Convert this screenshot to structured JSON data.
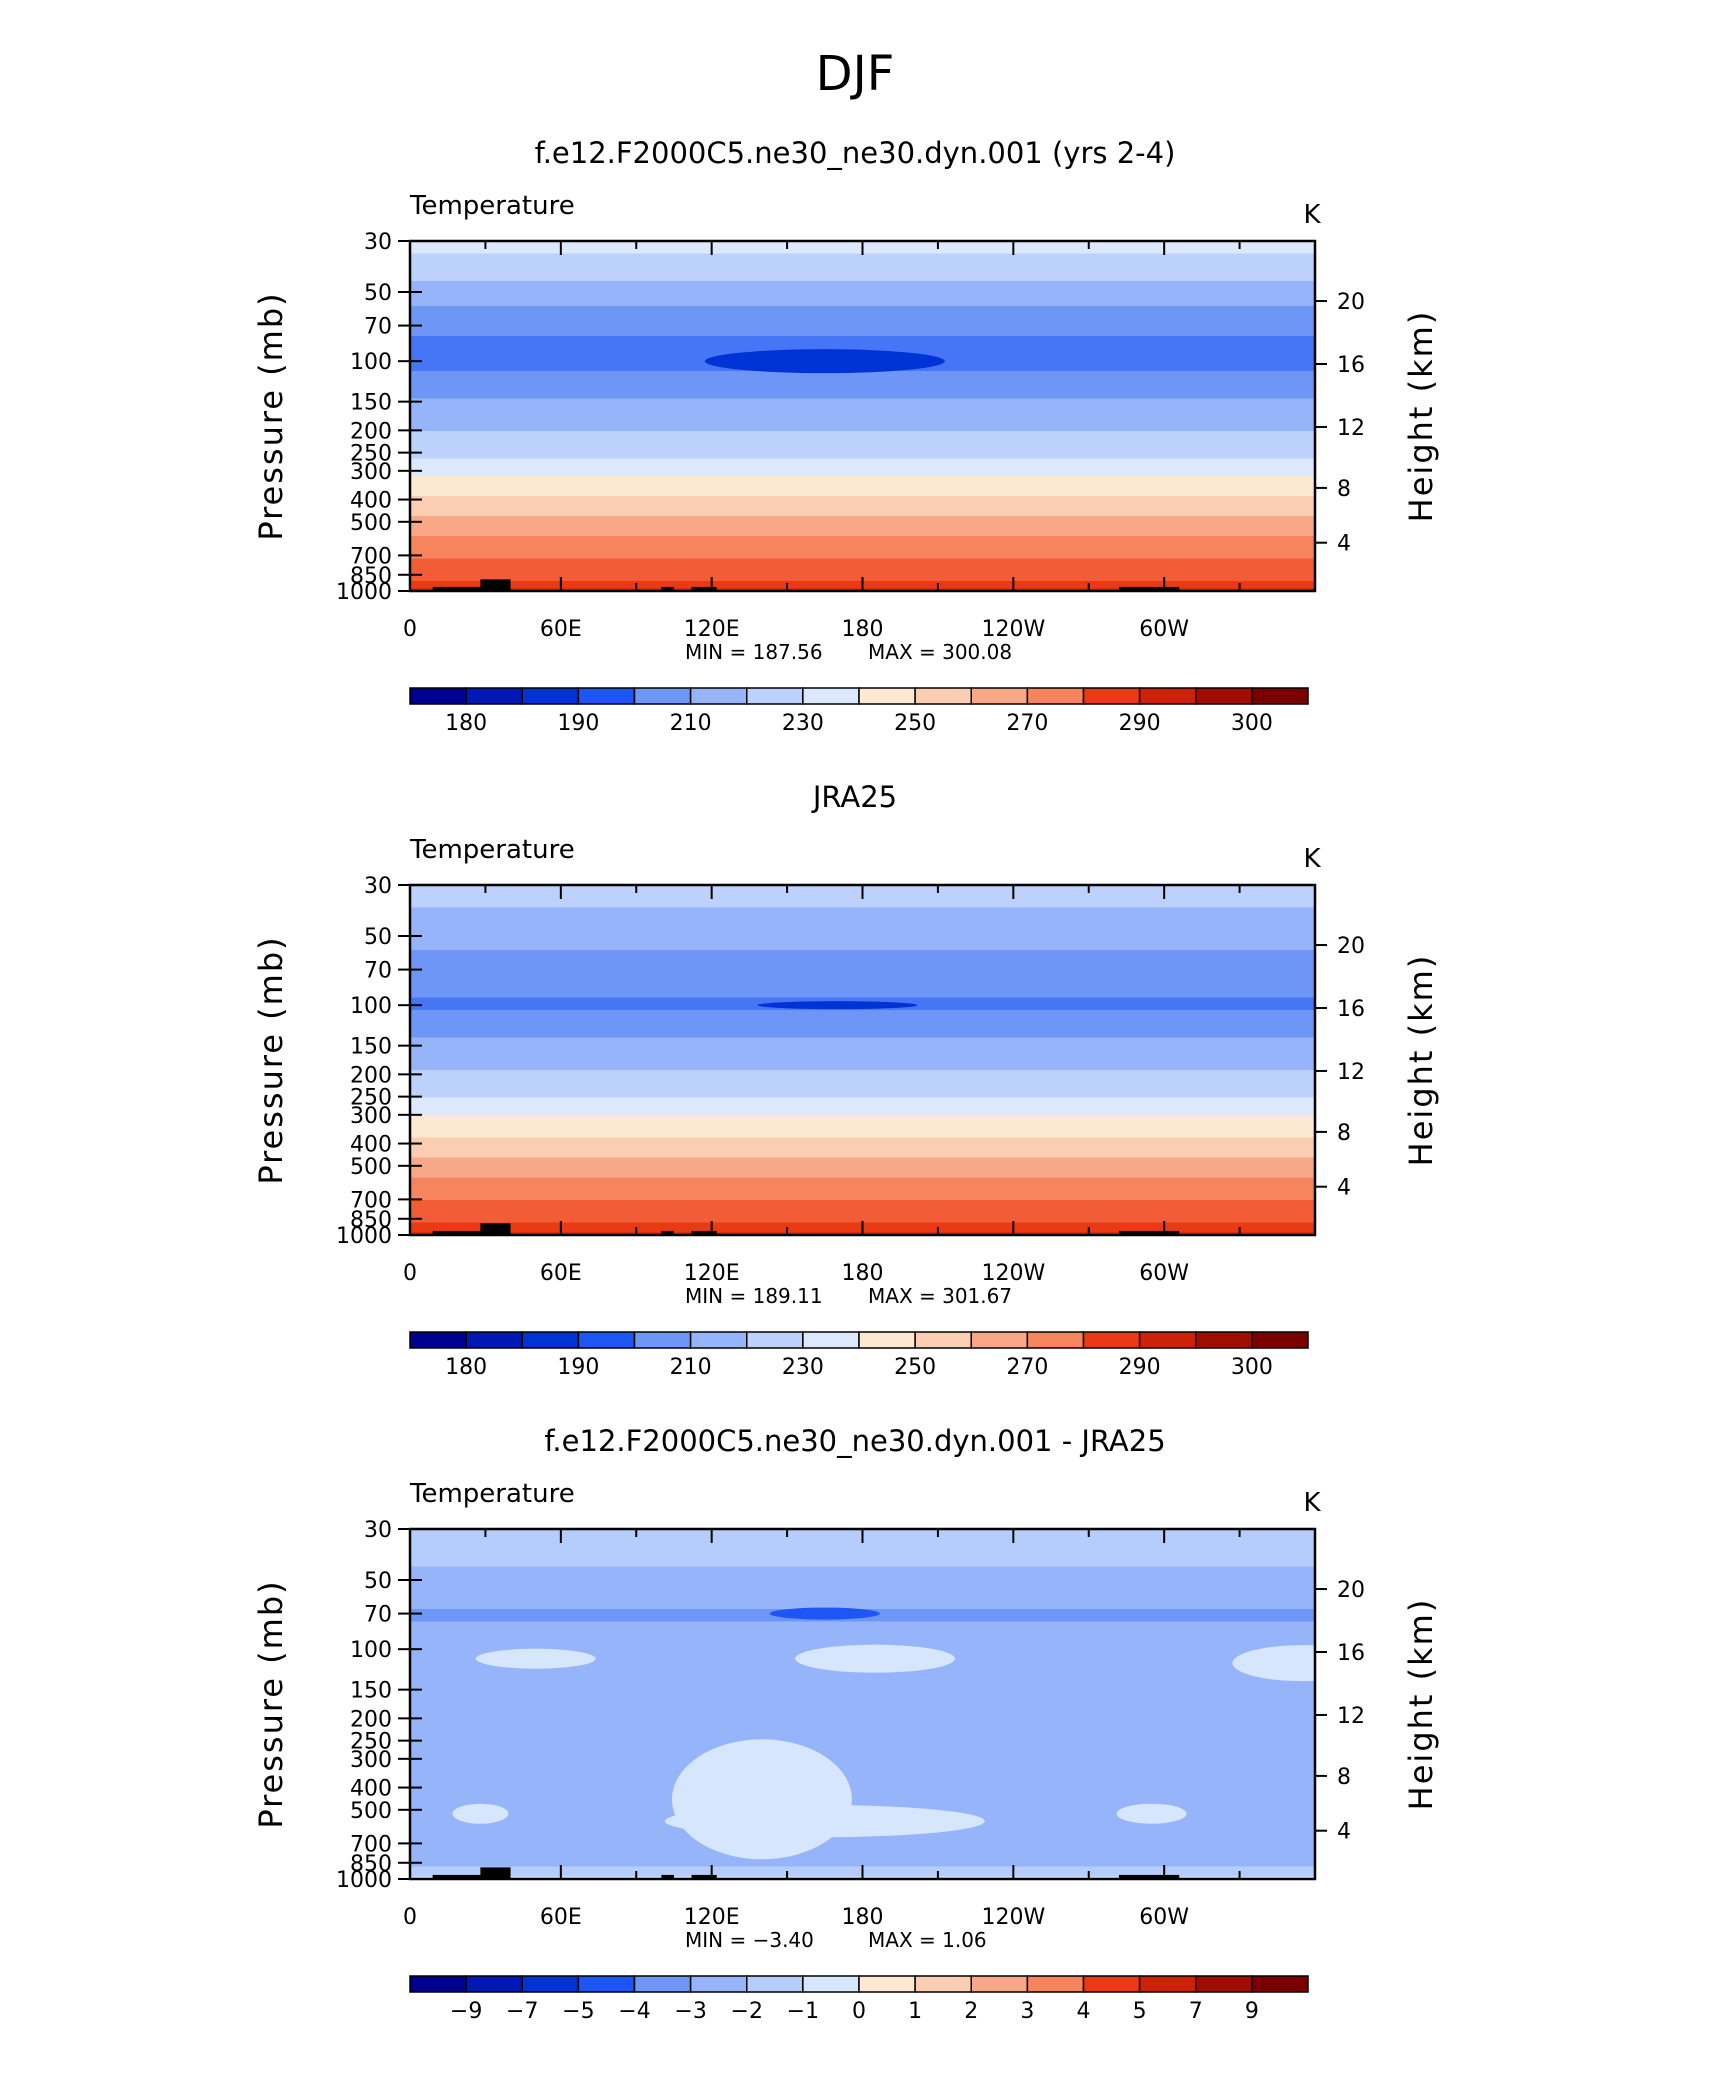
{
  "page_title": "DJF",
  "colors": {
    "temperature_levels": [
      "#000090",
      "#0019b4",
      "#0033d6",
      "#1e55f5",
      "#4676f5",
      "#6e96f7",
      "#96b4fa",
      "#bcd2fc",
      "#dce9fd",
      "#fde8d2",
      "#fbcdb2",
      "#f8a886",
      "#f6855e",
      "#f25d38",
      "#ea3a14",
      "#cc2208",
      "#a00d00",
      "#7a0000"
    ],
    "difference_levels": [
      "#000090",
      "#0019b4",
      "#0033d6",
      "#1e55f5",
      "#4676f5",
      "#6e96f7",
      "#96b4fa",
      "#b5cdfc",
      "#d6e6fd",
      "#fde8d2",
      "#fbcdb2",
      "#f8a886",
      "#f6855e",
      "#f25d38",
      "#ea3a14",
      "#cc2208",
      "#a00d00",
      "#7a0000"
    ],
    "topography": "#000000"
  },
  "chart_data": [
    {
      "type": "contour",
      "title": "f.e12.F2000C5.ne30_ne30.dyn.001 (yrs 2-4)",
      "field_label": "Temperature",
      "units": "K",
      "xlabel": "",
      "ylabel": "Pressure (mb)",
      "y2label": "Height (km)",
      "x_tick_labels": [
        "0",
        "60E",
        "120E",
        "180",
        "120W",
        "60W"
      ],
      "y_tick_labels": [
        "30",
        "50",
        "70",
        "100",
        "150",
        "200",
        "250",
        "300",
        "400",
        "500",
        "700",
        "850",
        "1000"
      ],
      "y2_tick_labels": [
        "20",
        "16",
        "12",
        "8",
        "4"
      ],
      "min_label": "MIN =",
      "min_value": "187.56",
      "max_label": "MAX =",
      "max_value": "300.08",
      "colorbar_labels": [
        "180",
        "190",
        "210",
        "230",
        "250",
        "270",
        "290",
        "300"
      ],
      "levels_by_pressure": [
        [
          30,
          234
        ],
        [
          50,
          215
        ],
        [
          70,
          201
        ],
        [
          100,
          197
        ],
        [
          150,
          212
        ],
        [
          200,
          220
        ],
        [
          250,
          228
        ],
        [
          300,
          238
        ],
        [
          400,
          253
        ],
        [
          500,
          264
        ],
        [
          700,
          279
        ],
        [
          850,
          287
        ],
        [
          1000,
          297
        ]
      ],
      "min_location": {
        "longitude": "~165E",
        "pressure_mb": 100
      }
    },
    {
      "type": "contour",
      "title": "JRA25",
      "field_label": "Temperature",
      "units": "K",
      "xlabel": "",
      "ylabel": "Pressure (mb)",
      "y2label": "Height (km)",
      "x_tick_labels": [
        "0",
        "60E",
        "120E",
        "180",
        "120W",
        "60W"
      ],
      "y_tick_labels": [
        "30",
        "50",
        "70",
        "100",
        "150",
        "200",
        "250",
        "300",
        "400",
        "500",
        "700",
        "850",
        "1000"
      ],
      "y2_tick_labels": [
        "20",
        "16",
        "12",
        "8",
        "4"
      ],
      "min_label": "MIN =",
      "min_value": "189.11",
      "max_label": "MAX =",
      "max_value": "301.67",
      "colorbar_labels": [
        "180",
        "190",
        "210",
        "230",
        "250",
        "270",
        "290",
        "300"
      ],
      "levels_by_pressure": [
        [
          30,
          224
        ],
        [
          50,
          214
        ],
        [
          70,
          203
        ],
        [
          100,
          199
        ],
        [
          150,
          213
        ],
        [
          200,
          222
        ],
        [
          250,
          230
        ],
        [
          300,
          240
        ],
        [
          400,
          254
        ],
        [
          500,
          265
        ],
        [
          700,
          280
        ],
        [
          850,
          288
        ],
        [
          1000,
          297
        ]
      ],
      "min_location": {
        "longitude": "~170E",
        "pressure_mb": 100
      }
    },
    {
      "type": "contour",
      "title": "f.e12.F2000C5.ne30_ne30.dyn.001 - JRA25",
      "field_label": "Temperature",
      "units": "K",
      "xlabel": "",
      "ylabel": "Pressure (mb)",
      "y2label": "Height (km)",
      "x_tick_labels": [
        "0",
        "60E",
        "120E",
        "180",
        "120W",
        "60W"
      ],
      "y_tick_labels": [
        "30",
        "50",
        "70",
        "100",
        "150",
        "200",
        "250",
        "300",
        "400",
        "500",
        "700",
        "850",
        "1000"
      ],
      "y2_tick_labels": [
        "20",
        "16",
        "12",
        "8",
        "4"
      ],
      "min_label": "MIN =",
      "min_value": "−3.40",
      "max_label": "MAX =",
      "max_value": "1.06",
      "colorbar_labels": [
        "−9",
        "−7",
        "−5",
        "−4",
        "−3",
        "−2",
        "−1",
        "0",
        "1",
        "2",
        "3",
        "4",
        "5",
        "7",
        "9"
      ],
      "levels_by_pressure": [
        [
          30,
          -0.5
        ],
        [
          50,
          -1.2
        ],
        [
          70,
          -2.2
        ],
        [
          100,
          -1.2
        ],
        [
          150,
          -1.4
        ],
        [
          200,
          -1.5
        ],
        [
          300,
          -1.4
        ],
        [
          400,
          -1.2
        ],
        [
          500,
          -1.1
        ],
        [
          700,
          -1.1
        ],
        [
          850,
          -1.2
        ],
        [
          1000,
          0.3
        ]
      ],
      "min_location": {
        "longitude": "~165E",
        "pressure_mb": 70
      }
    }
  ]
}
